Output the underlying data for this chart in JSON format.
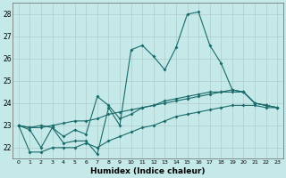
{
  "xlabel": "Humidex (Indice chaleur)",
  "background_color": "#c5e8e8",
  "grid_color": "#b0cccc",
  "line_color": "#1a6b6b",
  "xlim": [
    -0.5,
    23.5
  ],
  "ylim": [
    21.5,
    28.5
  ],
  "yticks": [
    22,
    23,
    24,
    25,
    26,
    27,
    28
  ],
  "xticks": [
    0,
    1,
    2,
    3,
    4,
    5,
    6,
    7,
    8,
    9,
    10,
    11,
    12,
    13,
    14,
    15,
    16,
    17,
    18,
    19,
    20,
    21,
    22,
    23
  ],
  "line_main": [
    23.0,
    22.8,
    22.0,
    22.9,
    22.2,
    22.3,
    22.3,
    21.7,
    23.8,
    23.0,
    26.4,
    26.6,
    26.1,
    25.5,
    26.5,
    28.0,
    28.1,
    26.6,
    25.8,
    24.6,
    24.5,
    24.0,
    23.9,
    23.8
  ],
  "line_slow1": [
    23.0,
    22.9,
    23.0,
    22.9,
    22.5,
    22.8,
    22.6,
    24.3,
    23.9,
    23.3,
    23.5,
    23.8,
    23.9,
    24.1,
    24.2,
    24.3,
    24.4,
    24.5,
    24.5,
    24.6,
    24.5,
    24.0,
    23.9,
    23.8
  ],
  "line_slow2": [
    23.0,
    22.9,
    22.9,
    23.0,
    23.1,
    23.2,
    23.2,
    23.3,
    23.5,
    23.6,
    23.7,
    23.8,
    23.9,
    24.0,
    24.1,
    24.2,
    24.3,
    24.4,
    24.5,
    24.5,
    24.5,
    24.0,
    23.9,
    23.8
  ],
  "line_bottom": [
    23.0,
    21.8,
    21.8,
    22.0,
    22.0,
    22.0,
    22.2,
    22.0,
    22.3,
    22.5,
    22.7,
    22.9,
    23.0,
    23.2,
    23.4,
    23.5,
    23.6,
    23.7,
    23.8,
    23.9,
    23.9,
    23.9,
    23.8,
    23.8
  ]
}
